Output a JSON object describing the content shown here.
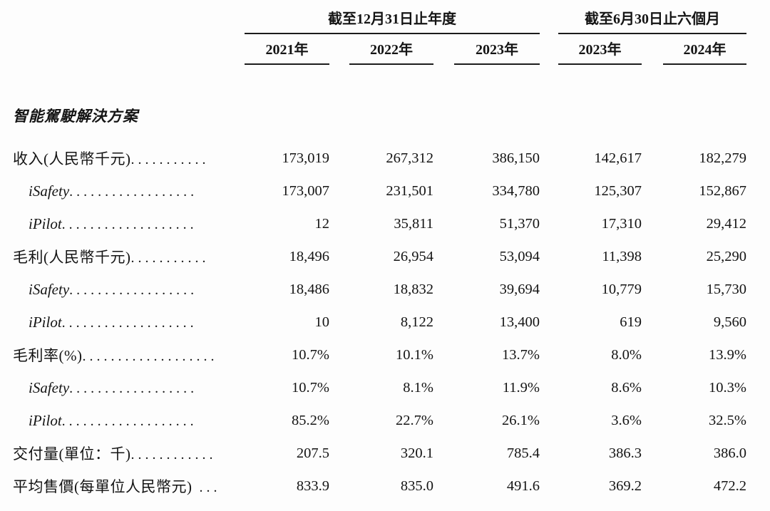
{
  "table": {
    "period_groups": [
      {
        "label": "截至12月31日止年度",
        "span": 3
      },
      {
        "label": "截至6月30日止六個月",
        "span": 2
      }
    ],
    "years": [
      "2021年",
      "2022年",
      "2023年",
      "2023年",
      "2024年"
    ],
    "section_title": "智能駕駛解決方案",
    "rows": [
      {
        "label": "收入(人民幣千元)",
        "dots": "...........",
        "em": false,
        "indent": false,
        "values": [
          "173,019",
          "267,312",
          "386,150",
          "142,617",
          "182,279"
        ]
      },
      {
        "label": "iSafety",
        "dots": "..................",
        "em": true,
        "indent": true,
        "values": [
          "173,007",
          "231,501",
          "334,780",
          "125,307",
          "152,867"
        ]
      },
      {
        "label": "iPilot",
        "dots": "...................",
        "em": true,
        "indent": true,
        "values": [
          "12",
          "35,811",
          "51,370",
          "17,310",
          "29,412"
        ]
      },
      {
        "label": "毛利(人民幣千元)",
        "dots": "...........",
        "em": false,
        "indent": false,
        "values": [
          "18,496",
          "26,954",
          "53,094",
          "11,398",
          "25,290"
        ]
      },
      {
        "label": "iSafety",
        "dots": "..................",
        "em": true,
        "indent": true,
        "values": [
          "18,486",
          "18,832",
          "39,694",
          "10,779",
          "15,730"
        ]
      },
      {
        "label": "iPilot",
        "dots": "...................",
        "em": true,
        "indent": true,
        "values": [
          "10",
          "8,122",
          "13,400",
          "619",
          "9,560"
        ]
      },
      {
        "label": "毛利率(%)",
        "dots": "...................",
        "em": false,
        "indent": false,
        "values": [
          "10.7%",
          "10.1%",
          "13.7%",
          "8.0%",
          "13.9%"
        ]
      },
      {
        "label": "iSafety",
        "dots": "..................",
        "em": true,
        "indent": true,
        "values": [
          "10.7%",
          "8.1%",
          "11.9%",
          "8.6%",
          "10.3%"
        ]
      },
      {
        "label": "iPilot",
        "dots": "...................",
        "em": true,
        "indent": true,
        "values": [
          "85.2%",
          "22.7%",
          "26.1%",
          "3.6%",
          "32.5%"
        ]
      },
      {
        "label": "交付量(單位：千)",
        "dots": "............",
        "em": false,
        "indent": false,
        "values": [
          "207.5",
          "320.1",
          "785.4",
          "386.3",
          "386.0"
        ]
      },
      {
        "label": "平均售價(每單位人民幣元)",
        "dots": " ...",
        "em": false,
        "indent": false,
        "values": [
          "833.9",
          "835.0",
          "491.6",
          "369.2",
          "472.2"
        ]
      }
    ],
    "colors": {
      "text": "#141414",
      "rule": "#1c1c1c",
      "background": "#fdfdfd"
    }
  }
}
